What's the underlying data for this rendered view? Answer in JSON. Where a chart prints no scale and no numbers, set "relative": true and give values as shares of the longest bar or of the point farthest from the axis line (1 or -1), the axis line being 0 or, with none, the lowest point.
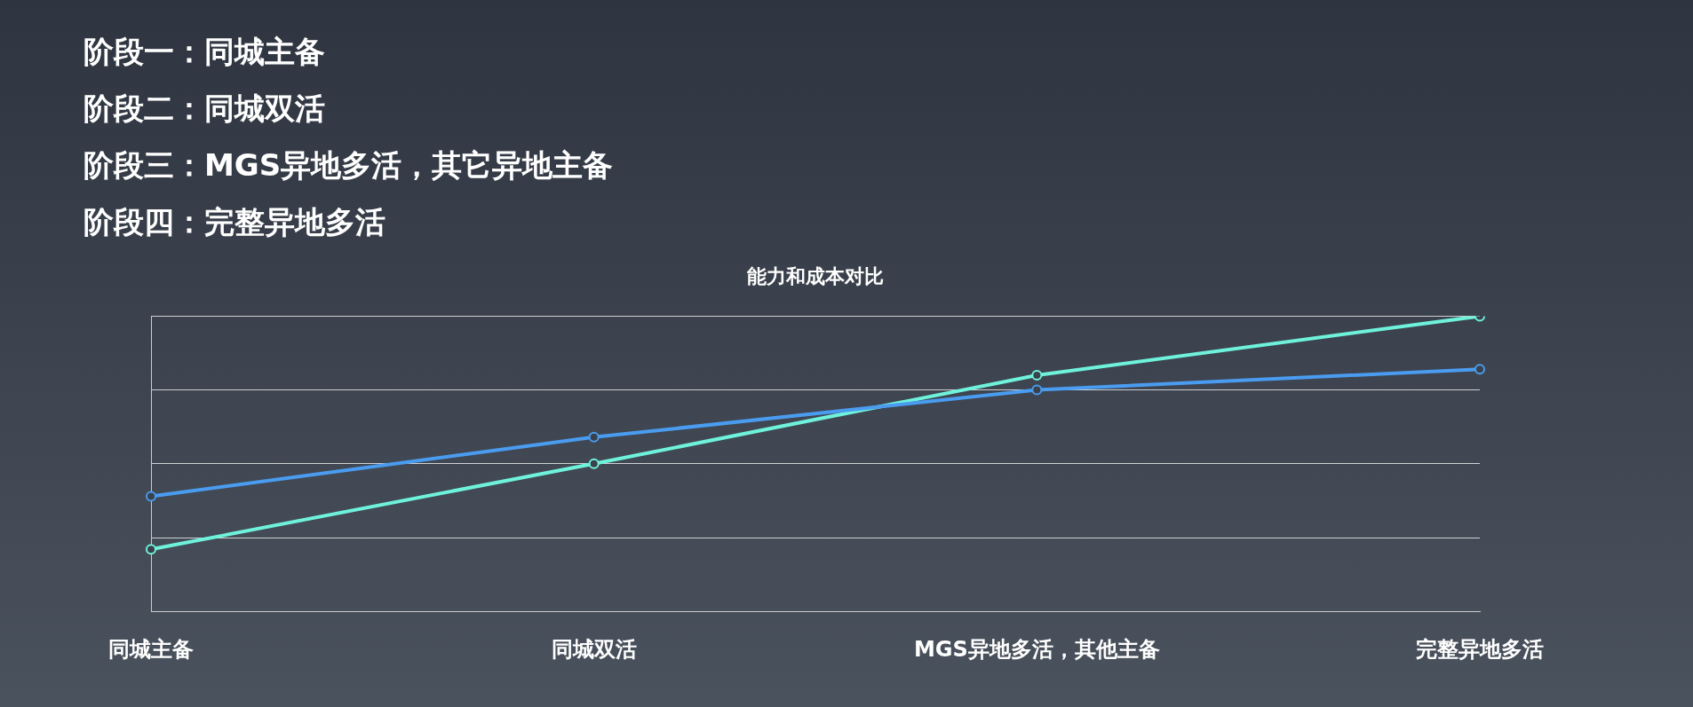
{
  "chart_data": {
    "type": "line",
    "title": "能力和成本对比",
    "annotations": [
      "阶段一：同城主备",
      "阶段二：同城双活",
      "阶段三：MGS异地多活，其它异地主备",
      "阶段四：完整异地多活"
    ],
    "categories": [
      "同城主备",
      "同城双活",
      "MGS异地多活，其他主备",
      "完整异地多活"
    ],
    "relative": true,
    "grid": "y",
    "marker": "circle",
    "line_style": "solid",
    "legend": false,
    "series": [
      {
        "color": "#4a9cf0",
        "values": [
          0.39,
          0.59,
          0.75,
          0.82
        ]
      },
      {
        "color": "#6ff2dc",
        "values": [
          0.21,
          0.5,
          0.8,
          1
        ]
      }
    ]
  }
}
